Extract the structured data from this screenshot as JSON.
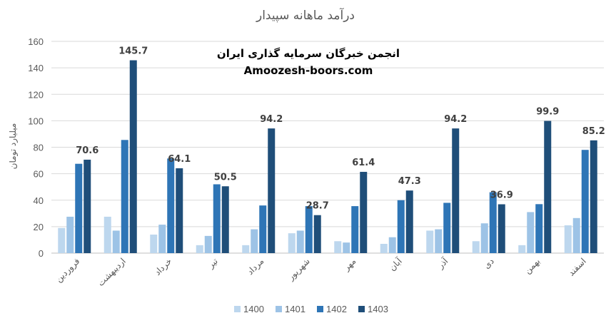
{
  "chart_data": {
    "type": "bar",
    "title": "درآمد ماهانه سپیدار",
    "ylabel": "میلیارد تومان",
    "xlabel": "",
    "ylim": [
      0,
      160
    ],
    "yticks": [
      0,
      20,
      40,
      60,
      80,
      100,
      120,
      140,
      160
    ],
    "grid": true,
    "legend_position": "bottom",
    "categories": [
      "فروردین",
      "اردیبهشت",
      "خرداد",
      "تیر",
      "مرداد",
      "شهریور",
      "مهر",
      "آبان",
      "آذر",
      "دی",
      "بهمن",
      "اسفند"
    ],
    "series": [
      {
        "name": "1400",
        "color": "#bdd7ee",
        "values": [
          19,
          27.5,
          14,
          6,
          6,
          15,
          9,
          7,
          17,
          9,
          6,
          21
        ]
      },
      {
        "name": "1401",
        "color": "#9dc3e6",
        "values": [
          27.5,
          17,
          21.5,
          13,
          18,
          17,
          8,
          12,
          18,
          22.5,
          31,
          26.5
        ]
      },
      {
        "name": "1402",
        "color": "#2e75b6",
        "values": [
          67.5,
          85.5,
          71.5,
          52,
          36,
          35.5,
          35.5,
          40,
          38,
          46,
          37,
          78
        ]
      },
      {
        "name": "1403",
        "color": "#1f4e79",
        "values": [
          70.6,
          145.7,
          64.1,
          50.5,
          94.2,
          28.7,
          61.4,
          47.3,
          94.2,
          36.9,
          99.9,
          85.2
        ]
      }
    ],
    "data_labels": [
      {
        "series": "1403",
        "values": [
          "70.6",
          "145.7",
          "64.1",
          "50.5",
          "94.2",
          "28.7",
          "61.4",
          "47.3",
          "94.2",
          "36.9",
          "99.9",
          "85.2"
        ]
      }
    ],
    "annotations": [
      "انجمن خبرگان سرمایه گذاری ایران",
      "Amoozesh-boors.com"
    ]
  },
  "colors": {
    "axis_text": "#595959",
    "grid": "#d9d9d9"
  }
}
